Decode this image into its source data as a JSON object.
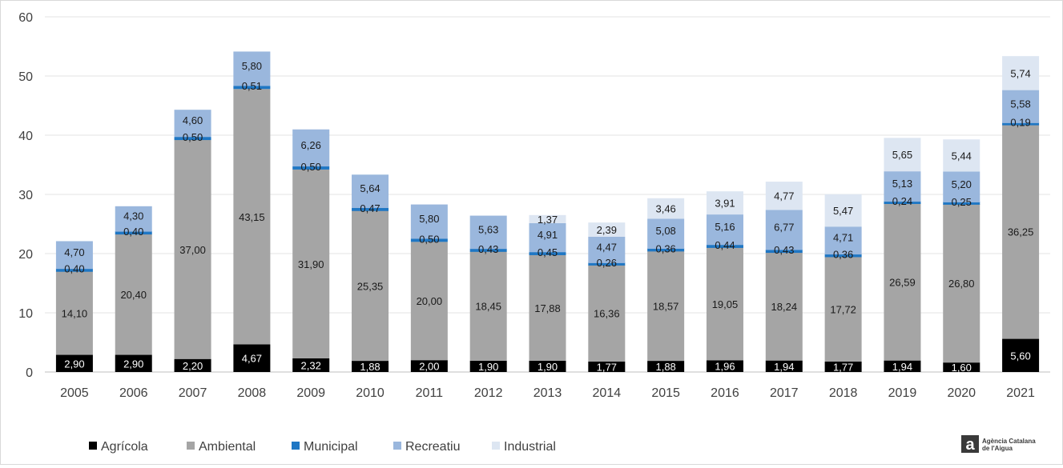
{
  "chart_data": {
    "type": "bar",
    "stacked": true,
    "title": "",
    "xlabel": "",
    "ylabel": "",
    "ylim": [
      0,
      60
    ],
    "yticks": [
      0,
      10,
      20,
      30,
      40,
      50,
      60
    ],
    "grid": true,
    "legend_position": "bottom",
    "categories": [
      "2005",
      "2006",
      "2007",
      "2008",
      "2009",
      "2010",
      "2011",
      "2012",
      "2013",
      "2014",
      "2015",
      "2016",
      "2017",
      "2018",
      "2019",
      "2020",
      "2021"
    ],
    "series": [
      {
        "name": "Agrícola",
        "color": "#000000",
        "values": [
          2.9,
          2.9,
          2.2,
          4.67,
          2.32,
          1.88,
          2.0,
          1.9,
          1.9,
          1.77,
          1.88,
          1.96,
          1.94,
          1.77,
          1.94,
          1.6,
          5.6
        ],
        "labels": [
          "2,90",
          "2,90",
          "2,20",
          "4,67",
          "2,32",
          "1,88",
          "2,00",
          "1,90",
          "1,90",
          "1,77",
          "1,88",
          "1,96",
          "1,94",
          "1,77",
          "1,94",
          "1,60",
          "5,60"
        ]
      },
      {
        "name": "Ambiental",
        "color": "#a5a5a5",
        "values": [
          14.1,
          20.4,
          37.0,
          43.15,
          31.9,
          25.35,
          20.0,
          18.45,
          17.88,
          16.36,
          18.57,
          19.05,
          18.24,
          17.72,
          26.59,
          26.8,
          36.25
        ],
        "labels": [
          "14,10",
          "20,40",
          "37,00",
          "43,15",
          "31,90",
          "25,35",
          "20,00",
          "18,45",
          "17,88",
          "16,36",
          "18,57",
          "19,05",
          "18,24",
          "17,72",
          "26,59",
          "26,80",
          "36,25"
        ]
      },
      {
        "name": "Municipal",
        "color": "#1f77c4",
        "values": [
          0.4,
          0.4,
          0.5,
          0.51,
          0.5,
          0.47,
          0.5,
          0.43,
          0.45,
          0.26,
          0.36,
          0.44,
          0.43,
          0.36,
          0.24,
          0.25,
          0.19
        ],
        "labels": [
          "0,40",
          "0,40",
          "0,50",
          "0,51",
          "0,50",
          "0,47",
          "0,50",
          "0,43",
          "0,45",
          "0,26",
          "0,36",
          "0,44",
          "0,43",
          "0,36",
          "0,24",
          "0,25",
          "0,19"
        ]
      },
      {
        "name": "Recreatiu",
        "color": "#9ab7dd",
        "values": [
          4.7,
          4.3,
          4.6,
          5.8,
          6.26,
          5.64,
          5.8,
          5.63,
          4.91,
          4.47,
          5.08,
          5.16,
          6.77,
          4.71,
          5.13,
          5.2,
          5.58
        ],
        "labels": [
          "4,70",
          "4,30",
          "4,60",
          "5,80",
          "6,26",
          "5,64",
          "5,80",
          "5,63",
          "4,91",
          "4,47",
          "5,08",
          "5,16",
          "6,77",
          "4,71",
          "5,13",
          "5,20",
          "5,58"
        ]
      },
      {
        "name": "Industrial",
        "color": "#dde6f2",
        "values": [
          0,
          0,
          0,
          0,
          0,
          0,
          0,
          0,
          1.37,
          2.39,
          3.46,
          3.91,
          4.77,
          5.47,
          5.65,
          5.44,
          5.74
        ],
        "labels": [
          "",
          "",
          "",
          "",
          "",
          "",
          "",
          "",
          "1,37",
          "2,39",
          "3,46",
          "3,91",
          "4,77",
          "5,47",
          "5,65",
          "5,44",
          "5,74"
        ]
      }
    ]
  },
  "logo": {
    "line1": "Agència Catalana",
    "line2": "de l'Aigua"
  }
}
